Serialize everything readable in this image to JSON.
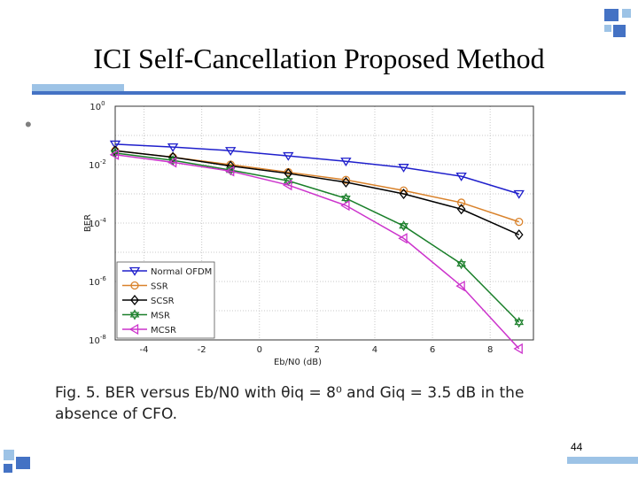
{
  "slide": {
    "title": "ICI Self-Cancellation Proposed Method",
    "bullet": "•",
    "caption_line1": "Fig. 5. BER versus Eb/N0 with θiq = 8⁰ and Giq = 3.5 dB in the",
    "caption_line2": "absence of CFO.",
    "page_number": "44"
  },
  "colors": {
    "accent_blue": "#4472c4",
    "light_blue": "#9dc3e6"
  },
  "chart_data": {
    "type": "line",
    "xlabel": "Eb/N0 (dB)",
    "ylabel": "BER",
    "xlim": [
      -5,
      9.5
    ],
    "ylim_exponent": [
      -8,
      0
    ],
    "y_scale": "log",
    "x_ticks": [
      "-4",
      "-2",
      "0",
      "2",
      "4",
      "6",
      "8"
    ],
    "y_ticks": [
      {
        "base": "10",
        "exp": "0"
      },
      {
        "base": "10",
        "exp": "-2"
      },
      {
        "base": "10",
        "exp": "-4"
      },
      {
        "base": "10",
        "exp": "-6"
      },
      {
        "base": "10",
        "exp": "-8"
      }
    ],
    "legend_placement": "bottom-left",
    "x": [
      -5,
      -3,
      -1,
      1,
      3,
      5,
      7,
      9
    ],
    "series": [
      {
        "name": "Normal OFDM",
        "color": "#1f1fcc",
        "marker": "triangle-down",
        "values": [
          0.05,
          0.04,
          0.03,
          0.02,
          0.013,
          0.008,
          0.004,
          0.001
        ]
      },
      {
        "name": "SSR",
        "color": "#d9822b",
        "marker": "circle",
        "values": [
          0.03,
          0.018,
          0.01,
          0.0055,
          0.003,
          0.0013,
          0.0005,
          0.00011
        ]
      },
      {
        "name": "SCSR",
        "color": "#000000",
        "marker": "diamond",
        "values": [
          0.03,
          0.018,
          0.009,
          0.005,
          0.0025,
          0.001,
          0.0003,
          4e-05
        ]
      },
      {
        "name": "MSR",
        "color": "#1a7f2a",
        "marker": "hexagram",
        "values": [
          0.025,
          0.014,
          0.0065,
          0.0028,
          0.0007,
          8e-05,
          4e-06,
          4e-08
        ]
      },
      {
        "name": "MCSR",
        "color": "#cc33cc",
        "marker": "triangle-left",
        "values": [
          0.022,
          0.012,
          0.006,
          0.002,
          0.0004,
          3e-05,
          7e-07,
          5e-09
        ]
      }
    ]
  }
}
